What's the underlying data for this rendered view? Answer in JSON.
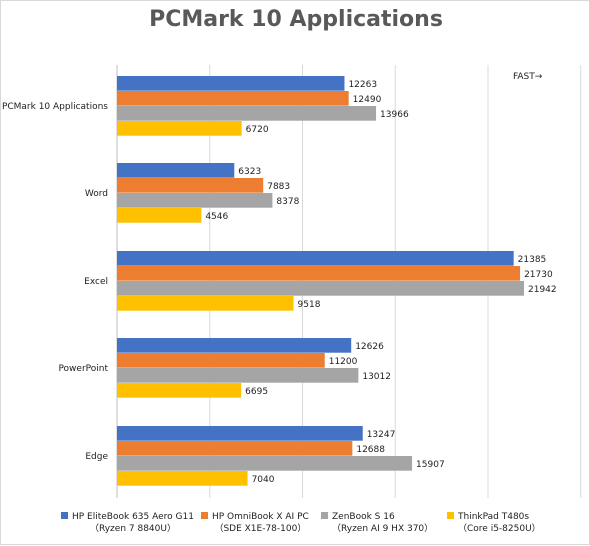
{
  "chart_data": {
    "type": "bar",
    "orientation": "horizontal",
    "title": "PCMark 10 Applications",
    "annotation": "FAST→",
    "categories": [
      "PCMark 10 Applications",
      "Word",
      "Excel",
      "PowerPoint",
      "Edge"
    ],
    "xlim": [
      0,
      25000
    ],
    "grid": true,
    "legend_position": "bottom",
    "series": [
      {
        "name": "HP EliteBook 635 Aero G11",
        "sub": "（Ryzen 7 8840U）",
        "color": "#4472C4",
        "values": [
          12263,
          6323,
          21385,
          12626,
          13247
        ]
      },
      {
        "name": "HP OmniBook X AI PC",
        "sub": "（SDE X1E-78-100）",
        "color": "#ED7D31",
        "values": [
          12490,
          7883,
          21730,
          11200,
          12688
        ]
      },
      {
        "name": "ZenBook S 16",
        "sub": "（Ryzen AI 9 HX 370）",
        "color": "#A5A5A5",
        "values": [
          13966,
          8378,
          21942,
          13012,
          15907
        ]
      },
      {
        "name": "ThinkPad T480s",
        "sub": "（Core i5-8250U）",
        "color": "#FFC000",
        "values": [
          6720,
          4546,
          9518,
          6695,
          7040
        ]
      }
    ]
  }
}
